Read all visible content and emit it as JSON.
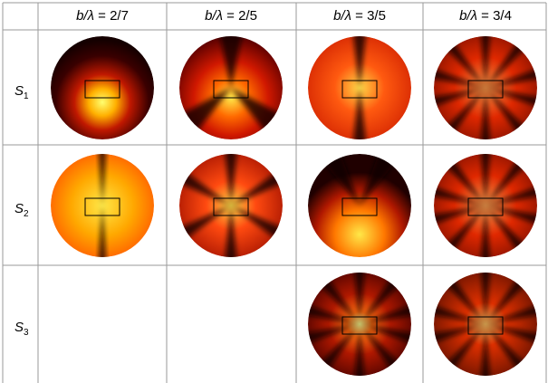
{
  "table": {
    "columns": [
      {
        "variable": "b/λ",
        "rest": " = 2/7"
      },
      {
        "variable": "b/λ",
        "rest": " = 2/5"
      },
      {
        "variable": "b/λ",
        "rest": " = 3/5"
      },
      {
        "variable": "b/λ",
        "rest": " = 3/4"
      }
    ],
    "rows": [
      {
        "symbol": "S",
        "subscript": "1"
      },
      {
        "symbol": "S",
        "subscript": "2"
      },
      {
        "symbol": "S",
        "subscript": "3"
      }
    ]
  }
}
